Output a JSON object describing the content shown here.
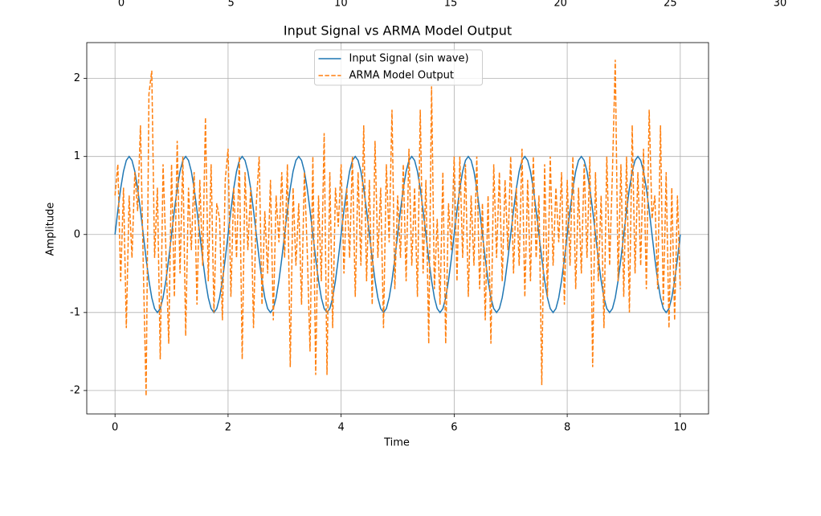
{
  "chart_data": {
    "type": "line",
    "title": "Input Signal vs ARMA Model Output",
    "xlabel": "Time",
    "ylabel": "Amplitude",
    "xlim": [
      -0.5,
      10.5
    ],
    "ylim": [
      -2.3,
      2.46
    ],
    "xticks": [
      0,
      2,
      4,
      6,
      8,
      10
    ],
    "yticks": [
      -2,
      -1,
      0,
      1,
      2
    ],
    "x2lim": [
      -1.5,
      31.5
    ],
    "x2ticks": [
      0,
      5,
      10,
      15,
      20,
      25,
      30
    ],
    "grid": true,
    "legend": "upper center",
    "x": [
      0,
      0.05,
      0.1,
      0.15,
      0.2,
      0.25,
      0.3,
      0.35,
      0.4,
      0.45,
      0.5,
      0.55,
      0.6,
      0.65,
      0.7,
      0.75,
      0.8,
      0.85,
      0.9,
      0.95,
      1,
      1.05,
      1.1,
      1.15,
      1.2,
      1.25,
      1.3,
      1.35,
      1.4,
      1.45,
      1.5,
      1.55,
      1.6,
      1.65,
      1.7,
      1.75,
      1.8,
      1.85,
      1.9,
      1.95,
      2,
      2.05,
      2.1,
      2.15,
      2.2,
      2.25,
      2.3,
      2.35,
      2.4,
      2.45,
      2.5,
      2.55,
      2.6,
      2.65,
      2.7,
      2.75,
      2.8,
      2.85,
      2.9,
      2.95,
      3,
      3.05,
      3.1,
      3.15,
      3.2,
      3.25,
      3.3,
      3.35,
      3.4,
      3.45,
      3.5,
      3.55,
      3.6,
      3.65,
      3.7,
      3.75,
      3.8,
      3.85,
      3.9,
      3.95,
      4,
      4.05,
      4.1,
      4.15,
      4.2,
      4.25,
      4.3,
      4.35,
      4.4,
      4.45,
      4.5,
      4.55,
      4.6,
      4.65,
      4.7,
      4.75,
      4.8,
      4.85,
      4.9,
      4.95,
      5,
      5.05,
      5.1,
      5.15,
      5.2,
      5.25,
      5.3,
      5.35,
      5.4,
      5.45,
      5.5,
      5.55,
      5.6,
      5.65,
      5.7,
      5.75,
      5.8,
      5.85,
      5.9,
      5.95,
      6,
      6.05,
      6.1,
      6.15,
      6.2,
      6.25,
      6.3,
      6.35,
      6.4,
      6.45,
      6.5,
      6.55,
      6.6,
      6.65,
      6.7,
      6.75,
      6.8,
      6.85,
      6.9,
      6.95,
      7,
      7.05,
      7.1,
      7.15,
      7.2,
      7.25,
      7.3,
      7.35,
      7.4,
      7.45,
      7.5,
      7.55,
      7.6,
      7.65,
      7.7,
      7.75,
      7.8,
      7.85,
      7.9,
      7.95,
      8,
      8.05,
      8.1,
      8.15,
      8.2,
      8.25,
      8.3,
      8.35,
      8.4,
      8.45,
      8.5,
      8.55,
      8.6,
      8.65,
      8.7,
      8.75,
      8.8,
      8.85,
      8.9,
      8.95,
      9,
      9.05,
      9.1,
      9.15,
      9.2,
      9.25,
      9.3,
      9.35,
      9.4,
      9.45,
      9.5,
      9.55,
      9.6,
      9.65,
      9.7,
      9.75,
      9.8,
      9.85,
      9.9,
      9.95,
      10
    ],
    "series": [
      {
        "name": "Input Signal (sin wave)",
        "color": "#1f77b4",
        "dash": false,
        "values": [
          0,
          0.31,
          0.59,
          0.81,
          0.95,
          1,
          0.95,
          0.81,
          0.59,
          0.31,
          0,
          -0.31,
          -0.59,
          -0.81,
          -0.95,
          -1,
          -0.95,
          -0.81,
          -0.59,
          -0.31,
          0,
          0.31,
          0.59,
          0.81,
          0.95,
          1,
          0.95,
          0.81,
          0.59,
          0.31,
          0,
          -0.31,
          -0.59,
          -0.81,
          -0.95,
          -1,
          -0.95,
          -0.81,
          -0.59,
          -0.31,
          0,
          0.31,
          0.59,
          0.81,
          0.95,
          1,
          0.95,
          0.81,
          0.59,
          0.31,
          0,
          -0.31,
          -0.59,
          -0.81,
          -0.95,
          -1,
          -0.95,
          -0.81,
          -0.59,
          -0.31,
          0,
          0.31,
          0.59,
          0.81,
          0.95,
          1,
          0.95,
          0.81,
          0.59,
          0.31,
          0,
          -0.31,
          -0.59,
          -0.81,
          -0.95,
          -1,
          -0.95,
          -0.81,
          -0.59,
          -0.31,
          0,
          0.31,
          0.59,
          0.81,
          0.95,
          1,
          0.95,
          0.81,
          0.59,
          0.31,
          0,
          -0.31,
          -0.59,
          -0.81,
          -0.95,
          -1,
          -0.95,
          -0.81,
          -0.59,
          -0.31,
          0,
          0.31,
          0.59,
          0.81,
          0.95,
          1,
          0.95,
          0.81,
          0.59,
          0.31,
          0,
          -0.31,
          -0.59,
          -0.81,
          -0.95,
          -1,
          -0.95,
          -0.81,
          -0.59,
          -0.31,
          0,
          0.31,
          0.59,
          0.81,
          0.95,
          1,
          0.95,
          0.81,
          0.59,
          0.31,
          0,
          -0.31,
          -0.59,
          -0.81,
          -0.95,
          -1,
          -0.95,
          -0.81,
          -0.59,
          -0.31,
          0,
          0.31,
          0.59,
          0.81,
          0.95,
          1,
          0.95,
          0.81,
          0.59,
          0.31,
          0,
          -0.31,
          -0.59,
          -0.81,
          -0.95,
          -1,
          -0.95,
          -0.81,
          -0.59,
          -0.31,
          0,
          0.31,
          0.59,
          0.81,
          0.95,
          1,
          0.95,
          0.81,
          0.59,
          0.31,
          0,
          -0.31,
          -0.59,
          -0.81,
          -0.95,
          -1,
          -0.95,
          -0.81,
          -0.59,
          -0.31,
          0,
          0.31,
          0.59,
          0.81,
          0.95,
          1,
          0.95,
          0.81,
          0.59,
          0.31,
          0,
          -0.31,
          -0.59,
          -0.81,
          -0.95,
          -1,
          -0.95,
          -0.81,
          -0.59,
          -0.31,
          0
        ]
      },
      {
        "name": "ARMA Model Output",
        "color": "#ff7f0e",
        "dash": true,
        "values": [
          0.5,
          0.9,
          -0.6,
          0.6,
          -1.2,
          0.5,
          -0.3,
          0.8,
          0.3,
          1.4,
          -0.4,
          -2.07,
          1.8,
          2.1,
          -0.3,
          0.6,
          -1.6,
          0.9,
          -0.2,
          -1.4,
          0.9,
          -0.8,
          1.2,
          -0.5,
          1.0,
          -1.3,
          0.6,
          -0.2,
          0.8,
          -0.9,
          0.7,
          -0.4,
          1.5,
          -0.6,
          0.9,
          -1.0,
          0.4,
          0.2,
          -1.1,
          0.7,
          1.1,
          -0.8,
          0.6,
          -0.3,
          1.0,
          -1.6,
          0.8,
          -0.2,
          0.6,
          -1.2,
          0.4,
          1.0,
          -0.9,
          0.3,
          -0.5,
          0.7,
          -1.1,
          0.5,
          -0.1,
          0.8,
          -0.3,
          0.9,
          -1.7,
          0.6,
          -0.4,
          0.4,
          -0.9,
          0.8,
          -0.2,
          -1.5,
          1.0,
          -1.8,
          0.5,
          -0.6,
          1.3,
          -1.8,
          0.8,
          -1.2,
          0.6,
          0.1,
          0.9,
          -0.5,
          0.6,
          -0.3,
          1.0,
          -0.8,
          0.8,
          -0.4,
          1.4,
          -0.6,
          0.7,
          -0.9,
          1.2,
          -0.3,
          0.6,
          -1.2,
          0.9,
          -0.1,
          1.6,
          -0.7,
          0.5,
          -0.3,
          0.9,
          -0.6,
          1.1,
          -0.4,
          0.6,
          -0.8,
          1.6,
          -0.5,
          0.7,
          -1.4,
          1.9,
          -0.7,
          0.2,
          -0.9,
          0.8,
          -1.4,
          0.4,
          -0.2,
          1.0,
          -0.6,
          1.0,
          -0.3,
          0.9,
          -0.8,
          0.5,
          -0.4,
          1.0,
          -0.7,
          0.4,
          -1.1,
          0.5,
          -1.4,
          0.9,
          -0.3,
          0.8,
          -0.6,
          0.7,
          -0.2,
          1.0,
          -0.5,
          0.6,
          -0.4,
          1.1,
          -0.8,
          0.7,
          -0.6,
          1.0,
          -0.3,
          0.5,
          -1.93,
          0.9,
          -0.8,
          1.0,
          -0.4,
          0.6,
          -0.1,
          0.8,
          -0.9,
          0.7,
          -0.4,
          1.0,
          -0.7,
          0.6,
          -0.5,
          0.9,
          -0.3,
          1.0,
          -1.7,
          0.8,
          -0.6,
          0.5,
          -1.2,
          1.0,
          -0.4,
          0.8,
          2.24,
          -0.6,
          0.9,
          -0.8,
          1.0,
          -1.0,
          1.4,
          -0.5,
          0.8,
          -0.4,
          1.1,
          -0.7,
          1.6,
          0.2,
          0.5,
          -0.7,
          1.4,
          -0.9,
          0.8,
          -1.2,
          0.6,
          -1.1,
          0.5,
          -0.7
        ]
      }
    ]
  }
}
